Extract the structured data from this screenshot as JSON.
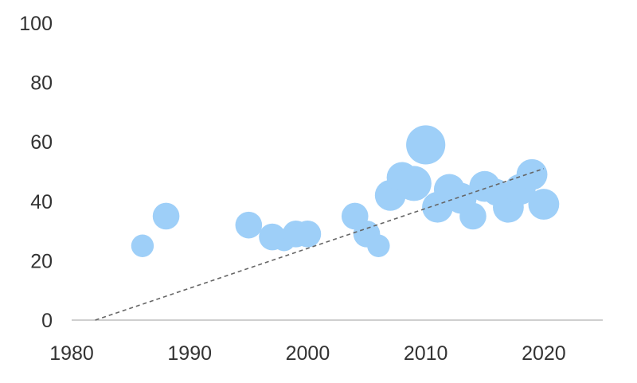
{
  "chart_data": {
    "type": "scatter",
    "title": "",
    "xlabel": "",
    "ylabel": "",
    "xlim": [
      1980,
      2025
    ],
    "ylim": [
      0,
      100
    ],
    "x_ticks": [
      1980,
      1990,
      2000,
      2010,
      2020
    ],
    "y_ticks": [
      0,
      20,
      40,
      60,
      80,
      100
    ],
    "x_tick_labels": [
      "1980",
      "1990",
      "2000",
      "2010",
      "2020"
    ],
    "y_tick_labels": [
      "0",
      "20",
      "40",
      "60",
      "80",
      "100"
    ],
    "grid": false,
    "legend": "none",
    "bubble_color": "#9ecff8",
    "trendline_color": "#666666",
    "trendline": {
      "style": "dashed",
      "from": [
        1982,
        0
      ],
      "to": [
        2020,
        51
      ]
    },
    "points": [
      {
        "x": 1986,
        "y": 25,
        "size": 2
      },
      {
        "x": 1988,
        "y": 35,
        "size": 3
      },
      {
        "x": 1995,
        "y": 32,
        "size": 3
      },
      {
        "x": 1997,
        "y": 28,
        "size": 3
      },
      {
        "x": 1998,
        "y": 27,
        "size": 2
      },
      {
        "x": 1999,
        "y": 29,
        "size": 3
      },
      {
        "x": 2000,
        "y": 29,
        "size": 3
      },
      {
        "x": 2004,
        "y": 35,
        "size": 3
      },
      {
        "x": 2005,
        "y": 29,
        "size": 3
      },
      {
        "x": 2006,
        "y": 25,
        "size": 2
      },
      {
        "x": 2007,
        "y": 42,
        "size": 4
      },
      {
        "x": 2008,
        "y": 48,
        "size": 4
      },
      {
        "x": 2009,
        "y": 46,
        "size": 5
      },
      {
        "x": 2010,
        "y": 59,
        "size": 6
      },
      {
        "x": 2011,
        "y": 38,
        "size": 4
      },
      {
        "x": 2012,
        "y": 44,
        "size": 4
      },
      {
        "x": 2013,
        "y": 41,
        "size": 4
      },
      {
        "x": 2014,
        "y": 35,
        "size": 3
      },
      {
        "x": 2015,
        "y": 45,
        "size": 4
      },
      {
        "x": 2016,
        "y": 43,
        "size": 3
      },
      {
        "x": 2017,
        "y": 38,
        "size": 4
      },
      {
        "x": 2018,
        "y": 44,
        "size": 4
      },
      {
        "x": 2019,
        "y": 49,
        "size": 4
      },
      {
        "x": 2020,
        "y": 39,
        "size": 4
      }
    ]
  }
}
